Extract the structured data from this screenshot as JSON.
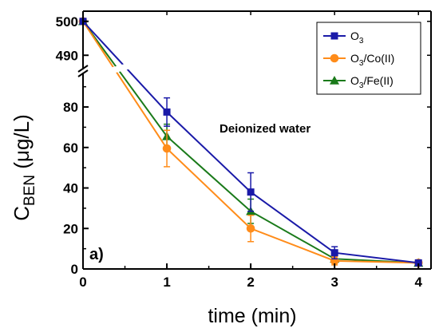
{
  "chart_data": {
    "type": "line",
    "xlabel": "time (min)",
    "ylabel_main": "C",
    "ylabel_sub": "BEN",
    "ylabel_unit": " (μg/L)",
    "x": [
      0,
      1,
      2,
      3,
      4
    ],
    "x_ticks": [
      "0",
      "1",
      "2",
      "3",
      "4"
    ],
    "xlim": [
      0,
      4.15
    ],
    "axis_break": true,
    "y_lower": {
      "range": [
        0,
        95
      ],
      "ticks": [
        0,
        20,
        40,
        60,
        80
      ],
      "tick_labels": [
        "0",
        "20",
        "40",
        "60",
        "80"
      ]
    },
    "y_upper": {
      "range": [
        487,
        503
      ],
      "ticks": [
        490,
        500
      ],
      "tick_labels": [
        "490",
        "500"
      ]
    },
    "series": [
      {
        "label_main": "O",
        "label_sub": "3",
        "label_suffix": "",
        "color": "#1a1aa8",
        "marker": "square",
        "values": [
          500,
          77.5,
          38,
          8,
          3
        ],
        "errors": [
          0,
          7,
          9.5,
          3,
          0
        ]
      },
      {
        "label_main": "O",
        "label_sub": "3",
        "label_suffix": "/Co(II)",
        "color": "#ff8c1a",
        "marker": "circle",
        "values": [
          500,
          59.5,
          20,
          4,
          3
        ],
        "errors": [
          0,
          9,
          6.5,
          2,
          0
        ]
      },
      {
        "label_main": "O",
        "label_sub": "3",
        "label_suffix": "/Fe(II)",
        "color": "#1a7a1a",
        "marker": "triangle",
        "values": [
          500,
          65.5,
          28.5,
          5,
          3
        ],
        "errors": [
          0,
          6,
          6,
          2,
          0
        ]
      }
    ],
    "annotation": "Deionized water",
    "panel_label": "a)",
    "legend_position": "top-right"
  }
}
